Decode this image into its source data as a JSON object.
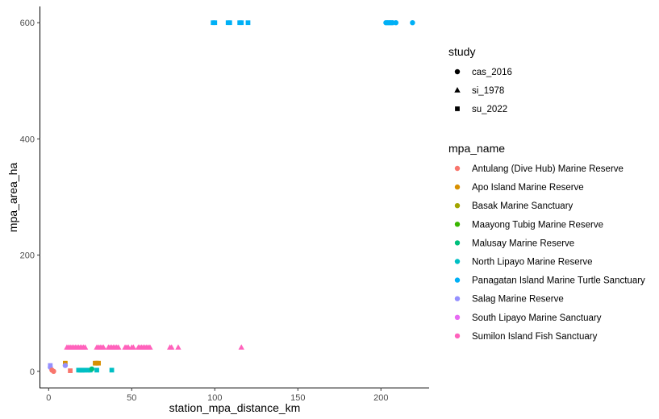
{
  "chart_data": {
    "type": "scatter",
    "title": "",
    "xlabel": "station_mpa_distance_km",
    "ylabel": "mpa_area_ha",
    "xlim": [
      -5,
      229
    ],
    "ylim": [
      -28,
      628
    ],
    "x_ticks": [
      0,
      50,
      100,
      150,
      200
    ],
    "y_ticks": [
      0,
      200,
      400,
      600
    ],
    "grid": false,
    "legend_placement": "right",
    "shape_legend": {
      "title": "study",
      "entries": [
        {
          "name": "cas_2016",
          "shape": "circle"
        },
        {
          "name": "si_1978",
          "shape": "triangle"
        },
        {
          "name": "su_2022",
          "shape": "square"
        }
      ]
    },
    "color_legend": {
      "title": "mpa_name",
      "entries": [
        {
          "name": "Antulang (Dive Hub) Marine Reserve",
          "color": "#F8766D"
        },
        {
          "name": "Apo Island Marine Reserve",
          "color": "#D89000"
        },
        {
          "name": "Basak Marine Sanctuary",
          "color": "#A3A500"
        },
        {
          "name": "Maayong Tubig Marine Reserve",
          "color": "#39B600"
        },
        {
          "name": "Malusay Marine Reserve",
          "color": "#00BF7D"
        },
        {
          "name": "North Lipayo Marine Reserve",
          "color": "#00BFC4"
        },
        {
          "name": "Panagatan Island Marine Turtle Sanctuary",
          "color": "#00B0F6"
        },
        {
          "name": "Salag Marine Reserve",
          "color": "#9590FF"
        },
        {
          "name": "South Lipayo Marine Sanctuary",
          "color": "#E76BF3"
        },
        {
          "name": "Sumilon Island Fish Sanctuary",
          "color": "#FF62BC"
        }
      ]
    },
    "points": [
      {
        "x": 99,
        "y": 600,
        "shape": "square",
        "mpa": "Panagatan Island Marine Turtle Sanctuary"
      },
      {
        "x": 100,
        "y": 600,
        "shape": "square",
        "mpa": "Panagatan Island Marine Turtle Sanctuary"
      },
      {
        "x": 108,
        "y": 600,
        "shape": "square",
        "mpa": "Panagatan Island Marine Turtle Sanctuary"
      },
      {
        "x": 109,
        "y": 600,
        "shape": "square",
        "mpa": "Panagatan Island Marine Turtle Sanctuary"
      },
      {
        "x": 115,
        "y": 600,
        "shape": "square",
        "mpa": "Panagatan Island Marine Turtle Sanctuary"
      },
      {
        "x": 116,
        "y": 600,
        "shape": "square",
        "mpa": "Panagatan Island Marine Turtle Sanctuary"
      },
      {
        "x": 120,
        "y": 600,
        "shape": "square",
        "mpa": "Panagatan Island Marine Turtle Sanctuary"
      },
      {
        "x": 203,
        "y": 600,
        "shape": "circle",
        "mpa": "Panagatan Island Marine Turtle Sanctuary"
      },
      {
        "x": 204,
        "y": 600,
        "shape": "circle",
        "mpa": "Panagatan Island Marine Turtle Sanctuary"
      },
      {
        "x": 205,
        "y": 600,
        "shape": "circle",
        "mpa": "Panagatan Island Marine Turtle Sanctuary"
      },
      {
        "x": 206,
        "y": 600,
        "shape": "circle",
        "mpa": "Panagatan Island Marine Turtle Sanctuary"
      },
      {
        "x": 207,
        "y": 600,
        "shape": "circle",
        "mpa": "Panagatan Island Marine Turtle Sanctuary"
      },
      {
        "x": 209,
        "y": 600,
        "shape": "circle",
        "mpa": "Panagatan Island Marine Turtle Sanctuary"
      },
      {
        "x": 219,
        "y": 600,
        "shape": "circle",
        "mpa": "Panagatan Island Marine Turtle Sanctuary"
      },
      {
        "x": 11,
        "y": 41,
        "shape": "triangle",
        "mpa": "Sumilon Island Fish Sanctuary"
      },
      {
        "x": 12,
        "y": 41,
        "shape": "triangle",
        "mpa": "Sumilon Island Fish Sanctuary"
      },
      {
        "x": 13,
        "y": 41,
        "shape": "triangle",
        "mpa": "Sumilon Island Fish Sanctuary"
      },
      {
        "x": 14,
        "y": 41,
        "shape": "triangle",
        "mpa": "Sumilon Island Fish Sanctuary"
      },
      {
        "x": 15,
        "y": 41,
        "shape": "triangle",
        "mpa": "Sumilon Island Fish Sanctuary"
      },
      {
        "x": 16,
        "y": 41,
        "shape": "triangle",
        "mpa": "Sumilon Island Fish Sanctuary"
      },
      {
        "x": 17,
        "y": 41,
        "shape": "triangle",
        "mpa": "Sumilon Island Fish Sanctuary"
      },
      {
        "x": 18,
        "y": 41,
        "shape": "triangle",
        "mpa": "Sumilon Island Fish Sanctuary"
      },
      {
        "x": 19,
        "y": 41,
        "shape": "triangle",
        "mpa": "Sumilon Island Fish Sanctuary"
      },
      {
        "x": 20,
        "y": 41,
        "shape": "triangle",
        "mpa": "Sumilon Island Fish Sanctuary"
      },
      {
        "x": 21,
        "y": 41,
        "shape": "triangle",
        "mpa": "Sumilon Island Fish Sanctuary"
      },
      {
        "x": 22,
        "y": 41,
        "shape": "triangle",
        "mpa": "Sumilon Island Fish Sanctuary"
      },
      {
        "x": 29,
        "y": 41,
        "shape": "triangle",
        "mpa": "Sumilon Island Fish Sanctuary"
      },
      {
        "x": 30,
        "y": 41,
        "shape": "triangle",
        "mpa": "Sumilon Island Fish Sanctuary"
      },
      {
        "x": 31,
        "y": 41,
        "shape": "triangle",
        "mpa": "Sumilon Island Fish Sanctuary"
      },
      {
        "x": 32,
        "y": 41,
        "shape": "triangle",
        "mpa": "Sumilon Island Fish Sanctuary"
      },
      {
        "x": 33,
        "y": 41,
        "shape": "triangle",
        "mpa": "Sumilon Island Fish Sanctuary"
      },
      {
        "x": 36,
        "y": 41,
        "shape": "triangle",
        "mpa": "Sumilon Island Fish Sanctuary"
      },
      {
        "x": 37,
        "y": 41,
        "shape": "triangle",
        "mpa": "Sumilon Island Fish Sanctuary"
      },
      {
        "x": 38,
        "y": 41,
        "shape": "triangle",
        "mpa": "Sumilon Island Fish Sanctuary"
      },
      {
        "x": 39,
        "y": 41,
        "shape": "triangle",
        "mpa": "Sumilon Island Fish Sanctuary"
      },
      {
        "x": 40,
        "y": 41,
        "shape": "triangle",
        "mpa": "Sumilon Island Fish Sanctuary"
      },
      {
        "x": 41,
        "y": 41,
        "shape": "triangle",
        "mpa": "Sumilon Island Fish Sanctuary"
      },
      {
        "x": 42,
        "y": 41,
        "shape": "triangle",
        "mpa": "Sumilon Island Fish Sanctuary"
      },
      {
        "x": 46,
        "y": 41,
        "shape": "triangle",
        "mpa": "Sumilon Island Fish Sanctuary"
      },
      {
        "x": 47,
        "y": 41,
        "shape": "triangle",
        "mpa": "Sumilon Island Fish Sanctuary"
      },
      {
        "x": 48,
        "y": 41,
        "shape": "triangle",
        "mpa": "Sumilon Island Fish Sanctuary"
      },
      {
        "x": 50,
        "y": 41,
        "shape": "triangle",
        "mpa": "Sumilon Island Fish Sanctuary"
      },
      {
        "x": 51,
        "y": 41,
        "shape": "triangle",
        "mpa": "Sumilon Island Fish Sanctuary"
      },
      {
        "x": 54,
        "y": 41,
        "shape": "triangle",
        "mpa": "Sumilon Island Fish Sanctuary"
      },
      {
        "x": 55,
        "y": 41,
        "shape": "triangle",
        "mpa": "Sumilon Island Fish Sanctuary"
      },
      {
        "x": 56,
        "y": 41,
        "shape": "triangle",
        "mpa": "Sumilon Island Fish Sanctuary"
      },
      {
        "x": 57,
        "y": 41,
        "shape": "triangle",
        "mpa": "Sumilon Island Fish Sanctuary"
      },
      {
        "x": 58,
        "y": 41,
        "shape": "triangle",
        "mpa": "Sumilon Island Fish Sanctuary"
      },
      {
        "x": 59,
        "y": 41,
        "shape": "triangle",
        "mpa": "Sumilon Island Fish Sanctuary"
      },
      {
        "x": 60,
        "y": 41,
        "shape": "triangle",
        "mpa": "Sumilon Island Fish Sanctuary"
      },
      {
        "x": 61,
        "y": 41,
        "shape": "triangle",
        "mpa": "Sumilon Island Fish Sanctuary"
      },
      {
        "x": 73,
        "y": 41,
        "shape": "triangle",
        "mpa": "Sumilon Island Fish Sanctuary"
      },
      {
        "x": 74,
        "y": 41,
        "shape": "triangle",
        "mpa": "Sumilon Island Fish Sanctuary"
      },
      {
        "x": 78,
        "y": 41,
        "shape": "triangle",
        "mpa": "Sumilon Island Fish Sanctuary"
      },
      {
        "x": 116,
        "y": 41,
        "shape": "triangle",
        "mpa": "Sumilon Island Fish Sanctuary"
      },
      {
        "x": 10,
        "y": 14,
        "shape": "square",
        "mpa": "Apo Island Marine Reserve"
      },
      {
        "x": 28,
        "y": 14,
        "shape": "square",
        "mpa": "Apo Island Marine Reserve"
      },
      {
        "x": 29,
        "y": 14,
        "shape": "square",
        "mpa": "Apo Island Marine Reserve"
      },
      {
        "x": 30,
        "y": 14,
        "shape": "square",
        "mpa": "Apo Island Marine Reserve"
      },
      {
        "x": 10,
        "y": 10,
        "shape": "circle",
        "mpa": "Salag Marine Reserve"
      },
      {
        "x": 1,
        "y": 10,
        "shape": "square",
        "mpa": "Salag Marine Reserve"
      },
      {
        "x": 1,
        "y": 7,
        "shape": "circle",
        "mpa": "Salag Marine Reserve"
      },
      {
        "x": 2,
        "y": 2,
        "shape": "circle",
        "mpa": "Antulang (Dive Hub) Marine Reserve"
      },
      {
        "x": 3,
        "y": 0,
        "shape": "circle",
        "mpa": "Antulang (Dive Hub) Marine Reserve"
      },
      {
        "x": 13,
        "y": 1,
        "shape": "square",
        "mpa": "Antulang (Dive Hub) Marine Reserve"
      },
      {
        "x": 18,
        "y": 2,
        "shape": "square",
        "mpa": "North Lipayo Marine Reserve"
      },
      {
        "x": 19,
        "y": 2,
        "shape": "square",
        "mpa": "North Lipayo Marine Reserve"
      },
      {
        "x": 20,
        "y": 2,
        "shape": "square",
        "mpa": "North Lipayo Marine Reserve"
      },
      {
        "x": 21,
        "y": 2,
        "shape": "square",
        "mpa": "North Lipayo Marine Reserve"
      },
      {
        "x": 22,
        "y": 2,
        "shape": "square",
        "mpa": "North Lipayo Marine Reserve"
      },
      {
        "x": 24,
        "y": 2,
        "shape": "square",
        "mpa": "North Lipayo Marine Reserve"
      },
      {
        "x": 25,
        "y": 2,
        "shape": "square",
        "mpa": "North Lipayo Marine Reserve"
      },
      {
        "x": 29,
        "y": 2,
        "shape": "square",
        "mpa": "North Lipayo Marine Reserve"
      },
      {
        "x": 38,
        "y": 2,
        "shape": "square",
        "mpa": "North Lipayo Marine Reserve"
      },
      {
        "x": 26,
        "y": 4,
        "shape": "circle",
        "mpa": "Malusay Marine Reserve"
      }
    ]
  }
}
